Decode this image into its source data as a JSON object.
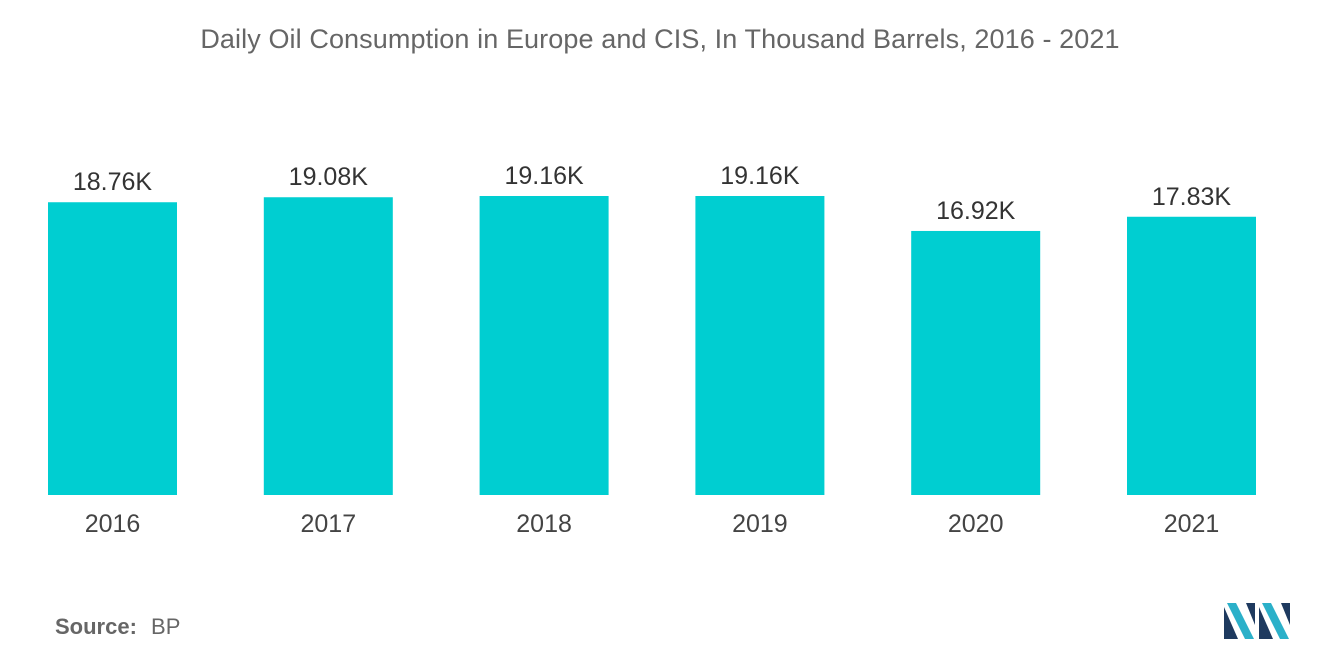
{
  "chart_data": {
    "type": "bar",
    "title": "Daily Oil Consumption in Europe and CIS, In Thousand Barrels, 2016 - 2021",
    "categories": [
      "2016",
      "2017",
      "2018",
      "2019",
      "2020",
      "2021"
    ],
    "values": [
      18.76,
      19.08,
      19.16,
      19.16,
      16.92,
      17.83
    ],
    "data_labels": [
      "18.76K",
      "19.08K",
      "19.16K",
      "19.16K",
      "16.92K",
      "17.83K"
    ],
    "xlabel": "",
    "ylabel": "",
    "ylim": [
      0,
      19.16
    ],
    "grid": false,
    "legend": "none",
    "bar_color": "#00CED1"
  },
  "source": {
    "label": "Source:",
    "value": "BP"
  },
  "logo": {
    "icon": "mordor-intelligence-logo-icon",
    "colors": [
      "#1E3A5F",
      "#2BB0C9"
    ]
  }
}
